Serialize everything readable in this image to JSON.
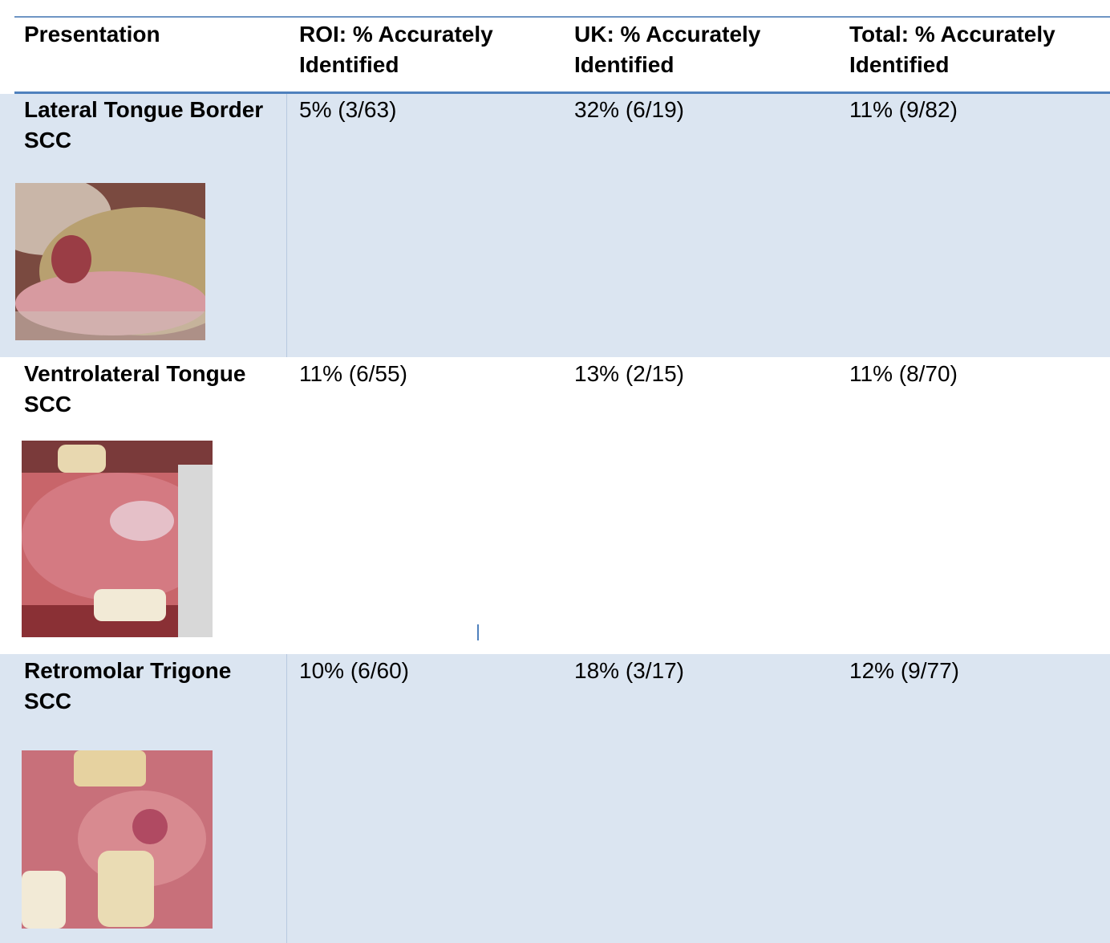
{
  "table": {
    "header": [
      "Presentation",
      "ROI: % Accurately Identified",
      "UK: % Accurately Identified",
      "Total: % Accurately Identified"
    ],
    "rows": [
      [
        "Lateral Tongue Border SCC",
        "5% (3/63)",
        "32% (6/19)",
        "11% (9/82)"
      ],
      [
        "Ventrolateral Tongue SCC",
        "11% (6/55)",
        "13% (2/15)",
        "11% (8/70)"
      ],
      [
        "Retromolar Trigone SCC",
        "10% (6/60)",
        "18% (3/17)",
        "12% (9/77)"
      ]
    ]
  }
}
